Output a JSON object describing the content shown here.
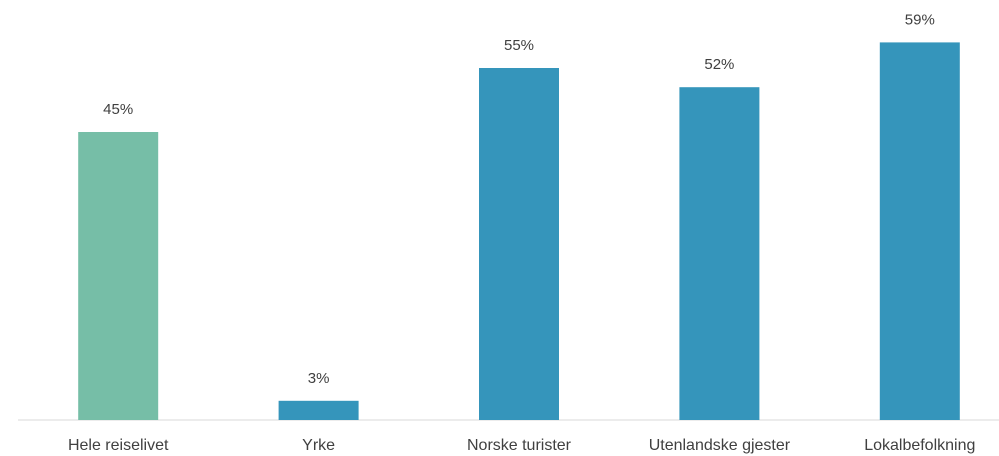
{
  "chart_data": {
    "type": "bar",
    "categories": [
      "Hele reiselivet",
      "Yrke",
      "Norske turister",
      "Utenlandske gjester",
      "Lokalbefolkning"
    ],
    "values": [
      45,
      3,
      55,
      52,
      59
    ],
    "value_labels": [
      "45%",
      "3%",
      "55%",
      "52%",
      "59%"
    ],
    "colors": [
      "#76bea7",
      "#3595bb",
      "#3595bb",
      "#3595bb",
      "#3595bb"
    ]
  }
}
